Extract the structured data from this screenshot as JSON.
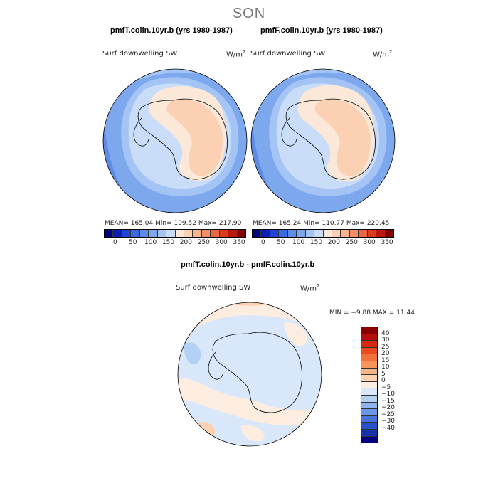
{
  "season": "SON",
  "panels": {
    "left": {
      "title": "pmfT.colin.10yr.b (yrs 1980-1987)",
      "subtitle": "Surf downwelling SW",
      "units_base": "W/m",
      "units_exp": "2",
      "stats": "MEAN= 165.04   Min= 109.52   Max= 217.90"
    },
    "right": {
      "title": "pmfF.colin.10yr.b (yrs 1980-1987)",
      "subtitle": "Surf downwelling SW",
      "units_base": "W/m",
      "units_exp": "2",
      "stats": "MEAN= 165.24   Min= 110.77   Max= 220.45"
    },
    "diff": {
      "title": "pmfT.colin.10yr.b - pmfF.colin.10yr.b",
      "subtitle": "Surf downwelling SW",
      "units_base": "W/m",
      "units_exp": "2",
      "stats": "MIN =   −9.88  MAX =   11.44"
    }
  },
  "colorbar_abs": {
    "colors": [
      "#000080",
      "#0d1fae",
      "#2244d6",
      "#3a6ae0",
      "#5c8be8",
      "#7ea8ee",
      "#a3c4f4",
      "#c9ddf8",
      "#fbe8d8",
      "#fcd0b2",
      "#fab38c",
      "#f59066",
      "#ec6640",
      "#dc3a1c",
      "#b8190b",
      "#800000"
    ],
    "labels": [
      "0",
      "50",
      "100",
      "150",
      "200",
      "250",
      "300",
      "350"
    ]
  },
  "colorbar_diff": {
    "colors": [
      "#8b0000",
      "#b3100b",
      "#d42a12",
      "#ea4a1f",
      "#f2703a",
      "#f7945c",
      "#f9b389",
      "#fcd2b3",
      "#fdece0",
      "#d8e8fa",
      "#b3d0f5",
      "#8eb4ee",
      "#6a96e6",
      "#4774dc",
      "#2852c7",
      "#1532a8",
      "#000080"
    ],
    "labels": [
      "40",
      "30",
      "25",
      "20",
      "15",
      "10",
      "5",
      "0",
      "−5",
      "−10",
      "−15",
      "−20",
      "−25",
      "−30",
      "−40"
    ]
  }
}
